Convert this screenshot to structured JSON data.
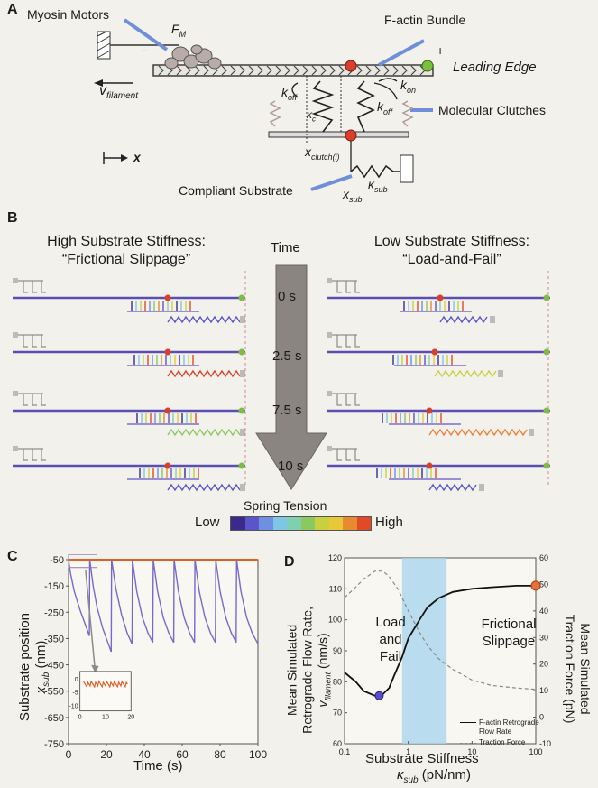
{
  "panel_a": {
    "label": "A",
    "myosin": "Myosin Motors",
    "fm": "F",
    "fm_sub": "M",
    "factin": "F-actin Bundle",
    "leading_edge": "Leading Edge",
    "vfil": "v",
    "vfil_sub": "filament",
    "koff_star": "k",
    "koff_star_sub": "off",
    "kc": "κ",
    "kc_sub": "c",
    "koff": "k",
    "koff_sub": "off",
    "kon": "k",
    "kon_sub": "on",
    "clutches": "Molecular Clutches",
    "xclutch": "x",
    "xclutch_sub": "clutch(i)",
    "ksub": "κ",
    "ksub_sub": "sub",
    "xsub": "x",
    "xsub_sub": "sub",
    "compliant": "Compliant Substrate",
    "xaxis": "x",
    "minus": "−",
    "plus": "+"
  },
  "panel_b": {
    "label": "B",
    "left_title1": "High Substrate Stiffness:",
    "left_title2": "“Frictional Slippage”",
    "right_title1": "Low Substrate Stiffness:",
    "right_title2": "“Load-and-Fail”",
    "time_label": "Time",
    "times": [
      "0 s",
      "2.5 s",
      "7.5 s",
      "10 s"
    ],
    "tension_label": "Spring Tension",
    "low": "Low",
    "high": "High",
    "tension_colors": [
      "#3b2a8c",
      "#5a55c8",
      "#6f8fe0",
      "#7fc6e6",
      "#7fd0b0",
      "#8cc860",
      "#c8d040",
      "#e8c838",
      "#e88a30",
      "#e04a28"
    ]
  },
  "panel_c": {
    "label": "C",
    "ylabel": "Substrate position",
    "ylabel_var": "x",
    "ylabel_sub": "sub",
    "ylabel_unit": "(nm)",
    "xlabel": "Time (s)",
    "yticks": [
      "-50",
      "-150",
      "-250",
      "-350",
      "-450",
      "-550",
      "-650",
      "-750"
    ],
    "xticks": [
      "0",
      "20",
      "40",
      "60",
      "80",
      "100"
    ],
    "inset_yticks": [
      "0",
      "-5",
      "-10"
    ],
    "inset_xticks": [
      "0",
      "10",
      "20"
    ]
  },
  "panel_d": {
    "label": "D",
    "ylabel_left1": "Mean Simulated",
    "ylabel_left2": "Retrograde Flow Rate,",
    "ylabel_left_var": "v",
    "ylabel_left_sub": "filament",
    "ylabel_left_unit": "(nm/s)",
    "ylabel_right1": "Mean Simulated",
    "ylabel_right2": "Traction Force (pN)",
    "xlabel": "Substrate Stiffness",
    "xlabel_var": "κ",
    "xlabel_sub": "sub",
    "xlabel_unit": "(pN/nm)",
    "yticks_left": [
      "120",
      "110",
      "100",
      "90",
      "80",
      "70",
      "60"
    ],
    "yticks_right": [
      "60",
      "50",
      "40",
      "30",
      "20",
      "10",
      "0",
      "-10"
    ],
    "xticks": [
      "0.1",
      "1",
      "10",
      "100"
    ],
    "load_fail1": "Load",
    "load_fail2": "and",
    "load_fail3": "Fail",
    "frictional1": "Frictional",
    "frictional2": "Slippage",
    "legend_flow1": "F-actin Retrograde",
    "legend_flow2": "Flow Rate",
    "legend_traction": "Traction Force"
  },
  "chart_data": [
    {
      "type": "line",
      "panel": "C",
      "xlabel": "Time (s)",
      "ylabel": "Substrate position x_sub (nm)",
      "xlim": [
        0,
        100
      ],
      "ylim": [
        -750,
        -50
      ],
      "series": [
        {
          "color": "#7a68c8",
          "x": [
            0,
            1,
            3,
            6,
            9,
            11,
            11.2,
            13,
            15,
            18,
            21,
            22.5,
            22.7,
            25,
            28,
            31,
            33.5,
            33.7,
            36,
            39,
            42,
            44.5,
            44.7,
            47,
            50,
            53,
            55.5,
            55.7,
            58,
            61,
            64,
            66.5,
            66.7,
            69,
            72,
            75,
            77.5,
            77.7,
            80,
            83,
            86,
            88.5,
            88.7,
            91,
            94,
            97,
            100
          ],
          "y": [
            -50,
            -100,
            -170,
            -240,
            -300,
            -340,
            -50,
            -150,
            -230,
            -310,
            -370,
            -400,
            -50,
            -160,
            -260,
            -330,
            -370,
            -50,
            -170,
            -270,
            -330,
            -365,
            -50,
            -170,
            -270,
            -330,
            -365,
            -50,
            -170,
            -270,
            -330,
            -365,
            -50,
            -170,
            -270,
            -330,
            -365,
            -50,
            -170,
            -270,
            -330,
            -365,
            -50,
            -170,
            -270,
            -330,
            -370
          ]
        },
        {
          "color": "#e0602a",
          "x": [
            0,
            100
          ],
          "y": [
            -50,
            -50
          ]
        }
      ]
    },
    {
      "type": "line",
      "panel": "D",
      "xlabel": "Substrate Stiffness κ_sub (pN/nm)",
      "xscale": "log",
      "xlim": [
        0.1,
        100
      ],
      "ylim_left": [
        60,
        120
      ],
      "ylim_right": [
        -10,
        60
      ],
      "series": [
        {
          "name": "F-actin Retrograde Flow Rate",
          "axis": "left",
          "color": "#111111",
          "x": [
            0.1,
            0.15,
            0.2,
            0.3,
            0.4,
            0.5,
            0.6,
            0.8,
            1,
            1.5,
            2,
            3,
            5,
            10,
            20,
            50,
            100
          ],
          "y": [
            83,
            80,
            77,
            75.5,
            76,
            78,
            82,
            88,
            94,
            100,
            104,
            107,
            109,
            110,
            110.5,
            111,
            111
          ]
        },
        {
          "name": "Traction Force",
          "axis": "right",
          "color": "#888888",
          "x": [
            0.1,
            0.15,
            0.2,
            0.3,
            0.4,
            0.5,
            0.7,
            1,
            1.5,
            2,
            3,
            5,
            10,
            20,
            50,
            100
          ],
          "y": [
            45,
            49,
            52,
            55,
            55,
            53,
            48,
            40,
            32,
            27,
            22,
            18,
            14,
            12,
            11,
            10.5
          ]
        }
      ],
      "annotations": [
        {
          "text": "Load and Fail"
        },
        {
          "text": "Frictional Slippage"
        }
      ],
      "shaded_band": [
        0.8,
        4
      ]
    }
  ]
}
